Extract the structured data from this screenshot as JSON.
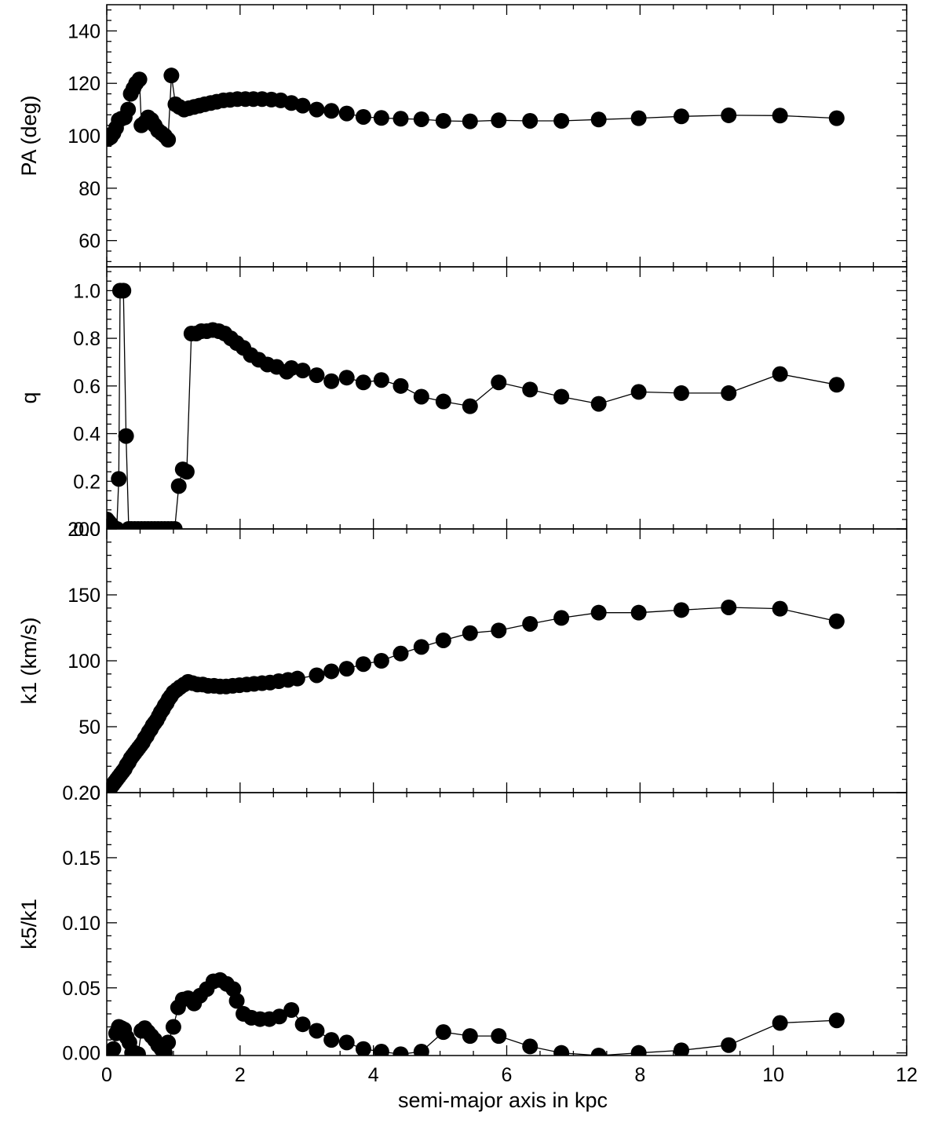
{
  "chart_data": {
    "type": "scatter",
    "style": {
      "marker": "filled-circle",
      "connected": true,
      "color": "#000000"
    },
    "x_axis": {
      "label": "semi-major axis in kpc",
      "range": [
        0,
        12
      ],
      "ticks": [
        0,
        2,
        4,
        6,
        8,
        10,
        12
      ],
      "tick_labels": [
        "0",
        "2",
        "4",
        "6",
        "8",
        "10",
        "12"
      ]
    },
    "panels": [
      {
        "id": "pa",
        "ylabel": "PA (deg)",
        "ylim": [
          50,
          150
        ],
        "yticks": [
          60,
          80,
          100,
          120,
          140
        ],
        "ytick_labels": [
          "60",
          "80",
          "100",
          "120",
          "140"
        ],
        "points": [
          [
            0.0,
            100
          ],
          [
            0.03,
            99
          ],
          [
            0.06,
            99.5
          ],
          [
            0.1,
            101
          ],
          [
            0.14,
            103
          ],
          [
            0.18,
            106
          ],
          [
            0.22,
            106.5
          ],
          [
            0.27,
            107
          ],
          [
            0.32,
            110
          ],
          [
            0.36,
            116
          ],
          [
            0.4,
            118
          ],
          [
            0.44,
            120
          ],
          [
            0.49,
            121.5
          ],
          [
            0.52,
            104
          ],
          [
            0.57,
            105
          ],
          [
            0.62,
            107
          ],
          [
            0.67,
            106
          ],
          [
            0.72,
            104
          ],
          [
            0.77,
            102
          ],
          [
            0.82,
            101
          ],
          [
            0.87,
            100
          ],
          [
            0.92,
            98.5
          ],
          [
            0.97,
            123
          ],
          [
            1.03,
            112
          ],
          [
            1.09,
            111
          ],
          [
            1.16,
            110
          ],
          [
            1.23,
            110.5
          ],
          [
            1.31,
            111
          ],
          [
            1.39,
            111.5
          ],
          [
            1.47,
            112
          ],
          [
            1.56,
            112.5
          ],
          [
            1.65,
            113
          ],
          [
            1.75,
            113.5
          ],
          [
            1.85,
            113.7
          ],
          [
            1.96,
            114
          ],
          [
            2.08,
            114
          ],
          [
            2.2,
            114
          ],
          [
            2.33,
            114
          ],
          [
            2.47,
            113.8
          ],
          [
            2.61,
            113.5
          ],
          [
            2.77,
            112.5
          ],
          [
            2.94,
            111.5
          ],
          [
            3.15,
            110
          ],
          [
            3.37,
            109.5
          ],
          [
            3.6,
            108.5
          ],
          [
            3.85,
            107.2
          ],
          [
            4.12,
            106.8
          ],
          [
            4.41,
            106.5
          ],
          [
            4.72,
            106.3
          ],
          [
            5.05,
            105.7
          ],
          [
            5.45,
            105.5
          ],
          [
            5.88,
            105.9
          ],
          [
            6.35,
            105.7
          ],
          [
            6.82,
            105.7
          ],
          [
            7.38,
            106.2
          ],
          [
            7.98,
            106.7
          ],
          [
            8.62,
            107.4
          ],
          [
            9.33,
            107.8
          ],
          [
            10.1,
            107.7
          ],
          [
            10.95,
            106.7
          ]
        ]
      },
      {
        "id": "q",
        "ylabel": "q",
        "ylim": [
          0,
          1.1
        ],
        "yticks": [
          0.0,
          0.2,
          0.4,
          0.6,
          0.8,
          1.0
        ],
        "ytick_labels": [
          "0.0",
          "0.2",
          "0.4",
          "0.6",
          "0.8",
          "1.0"
        ],
        "points": [
          [
            0.0,
            0.04
          ],
          [
            0.03,
            0.03
          ],
          [
            0.06,
            0.02
          ],
          [
            0.09,
            0.01
          ],
          [
            0.12,
            0.0
          ],
          [
            0.15,
            0.0
          ],
          [
            0.18,
            0.21
          ],
          [
            0.2,
            1.0
          ],
          [
            0.25,
            1.0
          ],
          [
            0.29,
            0.39
          ],
          [
            0.33,
            0.0
          ],
          [
            0.37,
            0.0
          ],
          [
            0.42,
            0.0
          ],
          [
            0.47,
            0.0
          ],
          [
            0.52,
            0.0
          ],
          [
            0.57,
            0.0
          ],
          [
            0.62,
            0.0
          ],
          [
            0.67,
            0.0
          ],
          [
            0.72,
            0.0
          ],
          [
            0.77,
            0.0
          ],
          [
            0.82,
            0.0
          ],
          [
            0.87,
            0.0
          ],
          [
            0.92,
            0.0
          ],
          [
            0.97,
            0.0
          ],
          [
            1.02,
            0.0
          ],
          [
            1.08,
            0.18
          ],
          [
            1.14,
            0.25
          ],
          [
            1.2,
            0.24
          ],
          [
            1.27,
            0.82
          ],
          [
            1.34,
            0.82
          ],
          [
            1.42,
            0.83
          ],
          [
            1.5,
            0.83
          ],
          [
            1.59,
            0.835
          ],
          [
            1.68,
            0.83
          ],
          [
            1.77,
            0.82
          ],
          [
            1.86,
            0.8
          ],
          [
            1.95,
            0.78
          ],
          [
            2.05,
            0.76
          ],
          [
            2.16,
            0.73
          ],
          [
            2.28,
            0.71
          ],
          [
            2.41,
            0.69
          ],
          [
            2.55,
            0.68
          ],
          [
            2.7,
            0.66
          ],
          [
            2.77,
            0.675
          ],
          [
            2.94,
            0.665
          ],
          [
            3.15,
            0.645
          ],
          [
            3.37,
            0.62
          ],
          [
            3.6,
            0.635
          ],
          [
            3.85,
            0.615
          ],
          [
            4.12,
            0.625
          ],
          [
            4.41,
            0.6
          ],
          [
            4.72,
            0.555
          ],
          [
            5.05,
            0.535
          ],
          [
            5.45,
            0.515
          ],
          [
            5.88,
            0.615
          ],
          [
            6.35,
            0.585
          ],
          [
            6.82,
            0.555
          ],
          [
            7.38,
            0.525
          ],
          [
            7.98,
            0.575
          ],
          [
            8.62,
            0.57
          ],
          [
            9.33,
            0.57
          ],
          [
            10.1,
            0.65
          ],
          [
            10.95,
            0.605
          ]
        ]
      },
      {
        "id": "k1",
        "ylabel": "k1 (km/s)",
        "ylim": [
          0,
          200
        ],
        "yticks": [
          0,
          50,
          100,
          150,
          200
        ],
        "ytick_labels": [
          "0",
          "50",
          "100",
          "150",
          "200"
        ],
        "points": [
          [
            0.0,
            0.5
          ],
          [
            0.03,
            2
          ],
          [
            0.06,
            4
          ],
          [
            0.09,
            6
          ],
          [
            0.12,
            8
          ],
          [
            0.15,
            10
          ],
          [
            0.18,
            12
          ],
          [
            0.21,
            14
          ],
          [
            0.24,
            16
          ],
          [
            0.27,
            18
          ],
          [
            0.3,
            21
          ],
          [
            0.33,
            23
          ],
          [
            0.36,
            26
          ],
          [
            0.39,
            28
          ],
          [
            0.42,
            30
          ],
          [
            0.45,
            32
          ],
          [
            0.48,
            34
          ],
          [
            0.51,
            36
          ],
          [
            0.54,
            38
          ],
          [
            0.57,
            41
          ],
          [
            0.6,
            43
          ],
          [
            0.63,
            46
          ],
          [
            0.66,
            48
          ],
          [
            0.69,
            51
          ],
          [
            0.72,
            53
          ],
          [
            0.75,
            55
          ],
          [
            0.78,
            58
          ],
          [
            0.81,
            61
          ],
          [
            0.84,
            63
          ],
          [
            0.87,
            66
          ],
          [
            0.9,
            68
          ],
          [
            0.93,
            71
          ],
          [
            0.96,
            73
          ],
          [
            1.0,
            76
          ],
          [
            1.05,
            78
          ],
          [
            1.1,
            80
          ],
          [
            1.16,
            82
          ],
          [
            1.22,
            84
          ],
          [
            1.29,
            83
          ],
          [
            1.36,
            82
          ],
          [
            1.44,
            82
          ],
          [
            1.52,
            81
          ],
          [
            1.61,
            81
          ],
          [
            1.7,
            80.5
          ],
          [
            1.79,
            80.5
          ],
          [
            1.89,
            81
          ],
          [
            1.99,
            81.5
          ],
          [
            2.1,
            82
          ],
          [
            2.21,
            82.5
          ],
          [
            2.33,
            83
          ],
          [
            2.45,
            83.5
          ],
          [
            2.58,
            84.5
          ],
          [
            2.72,
            85.5
          ],
          [
            2.86,
            86.5
          ],
          [
            3.15,
            89
          ],
          [
            3.37,
            92
          ],
          [
            3.6,
            94
          ],
          [
            3.85,
            97.5
          ],
          [
            4.12,
            100
          ],
          [
            4.41,
            105.5
          ],
          [
            4.72,
            110.5
          ],
          [
            5.05,
            115.5
          ],
          [
            5.45,
            121
          ],
          [
            5.88,
            123
          ],
          [
            6.35,
            128
          ],
          [
            6.82,
            132.5
          ],
          [
            7.38,
            136.5
          ],
          [
            7.98,
            136.5
          ],
          [
            8.62,
            138.5
          ],
          [
            9.33,
            140.5
          ],
          [
            10.1,
            139.5
          ],
          [
            10.95,
            130
          ]
        ]
      },
      {
        "id": "k5k1",
        "ylabel": "k5/k1",
        "ylim": [
          -0.002,
          0.2
        ],
        "yticks": [
          0.0,
          0.05,
          0.1,
          0.15,
          0.2
        ],
        "ytick_labels": [
          "0.00",
          "0.05",
          "0.10",
          "0.15",
          "0.20"
        ],
        "points": [
          [
            0.0,
            0.0
          ],
          [
            0.03,
            0.0
          ],
          [
            0.06,
            0.0
          ],
          [
            0.1,
            0.003
          ],
          [
            0.14,
            0.015
          ],
          [
            0.18,
            0.02
          ],
          [
            0.22,
            0.019
          ],
          [
            0.26,
            0.018
          ],
          [
            0.3,
            0.012
          ],
          [
            0.34,
            0.008
          ],
          [
            0.38,
            0.0
          ],
          [
            0.42,
            0.0
          ],
          [
            0.47,
            -0.001
          ],
          [
            0.52,
            0.017
          ],
          [
            0.57,
            0.019
          ],
          [
            0.62,
            0.016
          ],
          [
            0.67,
            0.013
          ],
          [
            0.72,
            0.01
          ],
          [
            0.77,
            0.006
          ],
          [
            0.82,
            0.003
          ],
          [
            0.87,
            0.0
          ],
          [
            0.92,
            0.008
          ],
          [
            1.0,
            0.02
          ],
          [
            1.07,
            0.035
          ],
          [
            1.14,
            0.041
          ],
          [
            1.22,
            0.042
          ],
          [
            1.31,
            0.038
          ],
          [
            1.4,
            0.044
          ],
          [
            1.5,
            0.049
          ],
          [
            1.6,
            0.055
          ],
          [
            1.7,
            0.056
          ],
          [
            1.8,
            0.053
          ],
          [
            1.9,
            0.049
          ],
          [
            1.95,
            0.04
          ],
          [
            2.05,
            0.03
          ],
          [
            2.17,
            0.027
          ],
          [
            2.3,
            0.026
          ],
          [
            2.44,
            0.026
          ],
          [
            2.59,
            0.028
          ],
          [
            2.77,
            0.033
          ],
          [
            2.94,
            0.022
          ],
          [
            3.15,
            0.017
          ],
          [
            3.37,
            0.01
          ],
          [
            3.6,
            0.008
          ],
          [
            3.85,
            0.003
          ],
          [
            4.12,
            0.001
          ],
          [
            4.41,
            -0.001
          ],
          [
            4.72,
            0.001
          ],
          [
            5.05,
            0.016
          ],
          [
            5.45,
            0.013
          ],
          [
            5.88,
            0.013
          ],
          [
            6.35,
            0.005
          ],
          [
            6.82,
            0.0
          ],
          [
            7.38,
            -0.002
          ],
          [
            7.98,
            0.0
          ],
          [
            8.62,
            0.002
          ],
          [
            9.33,
            0.006
          ],
          [
            10.1,
            0.023
          ],
          [
            10.95,
            0.025
          ]
        ]
      }
    ]
  }
}
